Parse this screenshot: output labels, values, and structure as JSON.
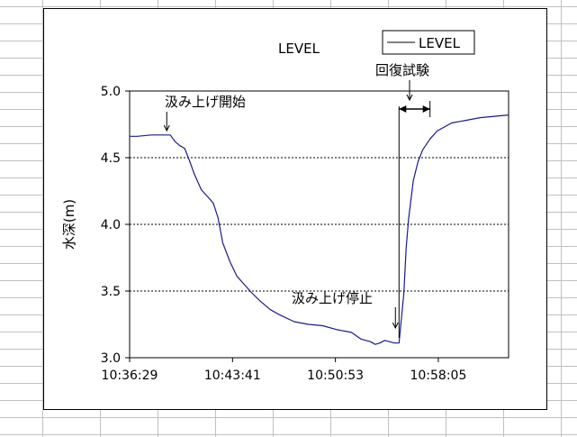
{
  "sheet": {
    "grid_color": "#c0c0c0"
  },
  "chart_data": {
    "type": "line",
    "title": "LEVEL",
    "xlabel": "",
    "ylabel": "水深(m)",
    "ylim": [
      3.0,
      5.0
    ],
    "yticks": [
      "3.0",
      "3.5",
      "4.0",
      "4.5",
      "5.0"
    ],
    "xlim": [
      "10:36:29",
      "10:63:00"
    ],
    "xticks": [
      "10:36:29",
      "10:43:41",
      "10:50:53",
      "10:58:05"
    ],
    "grid": "dotted horizontal",
    "legend": {
      "position": "top-right",
      "entries": [
        "LEVEL"
      ]
    },
    "series": [
      {
        "name": "LEVEL",
        "color": "#1a1a8c",
        "points": [
          [
            "10:36:29",
            4.66
          ],
          [
            "10:37:00",
            4.66
          ],
          [
            "10:38:00",
            4.67
          ],
          [
            "10:39:00",
            4.67
          ],
          [
            "10:39:20",
            4.67
          ],
          [
            "10:39:40",
            4.62
          ],
          [
            "10:40:00",
            4.59
          ],
          [
            "10:40:20",
            4.57
          ],
          [
            "10:40:40",
            4.48
          ],
          [
            "10:41:00",
            4.38
          ],
          [
            "10:41:30",
            4.26
          ],
          [
            "10:42:00",
            4.2
          ],
          [
            "10:42:20",
            4.16
          ],
          [
            "10:42:40",
            4.05
          ],
          [
            "10:43:00",
            3.86
          ],
          [
            "10:43:30",
            3.72
          ],
          [
            "10:44:00",
            3.61
          ],
          [
            "10:44:30",
            3.55
          ],
          [
            "10:45:00",
            3.49
          ],
          [
            "10:45:40",
            3.42
          ],
          [
            "10:46:20",
            3.36
          ],
          [
            "10:47:00",
            3.32
          ],
          [
            "10:48:00",
            3.27
          ],
          [
            "10:49:00",
            3.25
          ],
          [
            "10:50:00",
            3.24
          ],
          [
            "10:51:00",
            3.21
          ],
          [
            "10:52:00",
            3.19
          ],
          [
            "10:52:40",
            3.14
          ],
          [
            "10:53:20",
            3.12
          ],
          [
            "10:53:40",
            3.1
          ],
          [
            "10:54:00",
            3.11
          ],
          [
            "10:54:20",
            3.13
          ],
          [
            "10:54:40",
            3.12
          ],
          [
            "10:55:00",
            3.11
          ],
          [
            "10:55:20",
            3.11
          ],
          [
            "10:55:40",
            3.48
          ],
          [
            "10:55:50",
            3.82
          ],
          [
            "10:56:00",
            4.04
          ],
          [
            "10:56:20",
            4.33
          ],
          [
            "10:56:40",
            4.47
          ],
          [
            "10:57:00",
            4.56
          ],
          [
            "10:57:30",
            4.64
          ],
          [
            "10:58:00",
            4.7
          ],
          [
            "10:58:30",
            4.73
          ],
          [
            "10:59:00",
            4.76
          ],
          [
            "11:00:00",
            4.78
          ],
          [
            "11:01:00",
            4.8
          ],
          [
            "11:02:00",
            4.81
          ],
          [
            "11:03:00",
            4.82
          ]
        ]
      }
    ],
    "annotations": [
      {
        "text": "汲み上げ開始",
        "time": "10:39:20",
        "value": 4.67
      },
      {
        "text": "汲み上げ停止",
        "time": "10:55:20",
        "value": 3.11
      },
      {
        "text": "回復試験",
        "from": "10:55:20",
        "to": "10:57:30"
      }
    ]
  }
}
